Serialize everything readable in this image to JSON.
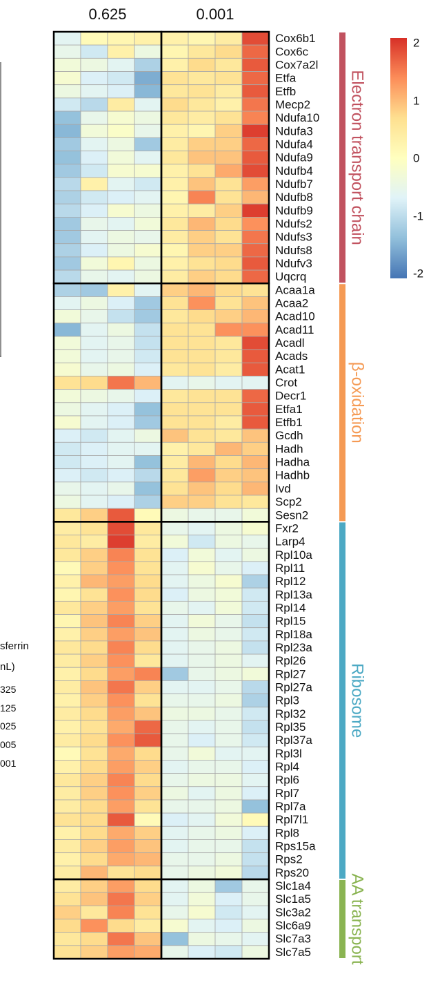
{
  "chart_data": {
    "type": "heatmap",
    "column_group_labels": [
      "0.625",
      "0.001"
    ],
    "color_scale": {
      "min": -2,
      "max": 2,
      "ticks": [
        "2",
        "1",
        "0",
        "-1",
        "-2"
      ],
      "colors": [
        "#4575b4",
        "#91bfdb",
        "#e0f3f8",
        "#ffffbf",
        "#fee090",
        "#fc8d59",
        "#d73027"
      ]
    },
    "groups": [
      {
        "name": "Electron transport chain",
        "color": "#c1525f"
      },
      {
        "name": "β-oxidation",
        "color": "#f59a54"
      },
      {
        "name": "Ribosome",
        "color": "#4ca9c4"
      },
      {
        "name": "AA transport",
        "color": "#8ab452"
      }
    ],
    "rows": [
      {
        "gene": "Cox6b1",
        "group": 0,
        "values": [
          -0.6,
          0.1,
          0.2,
          0.3,
          0.3,
          0.2,
          0.4,
          1.8
        ]
      },
      {
        "gene": "Cox6c",
        "group": 0,
        "values": [
          -0.5,
          -0.8,
          0.3,
          -0.4,
          0.2,
          0.5,
          0.7,
          1.6
        ]
      },
      {
        "gene": "Cox7a2l",
        "group": 0,
        "values": [
          -0.3,
          -0.4,
          -0.6,
          -1.1,
          0.3,
          0.7,
          0.5,
          1.7
        ]
      },
      {
        "gene": "Etfa",
        "group": 0,
        "values": [
          -0.2,
          -0.7,
          -0.8,
          -1.5,
          0.6,
          0.5,
          0.6,
          1.6
        ]
      },
      {
        "gene": "Etfb",
        "group": 0,
        "values": [
          -0.4,
          -0.6,
          -0.7,
          -1.4,
          0.5,
          0.6,
          0.4,
          1.7
        ]
      },
      {
        "gene": "Mecp2",
        "group": 0,
        "values": [
          -0.8,
          -1.0,
          0.4,
          -0.6,
          0.7,
          0.5,
          0.3,
          1.5
        ]
      },
      {
        "gene": "Ndufa10",
        "group": 0,
        "values": [
          -1.3,
          -0.5,
          -0.2,
          -0.4,
          0.5,
          0.4,
          0.6,
          1.4
        ]
      },
      {
        "gene": "Ndufa3",
        "group": 0,
        "values": [
          -1.4,
          -0.3,
          -0.1,
          -0.5,
          0.3,
          0.2,
          0.8,
          1.9
        ]
      },
      {
        "gene": "Ndufa4",
        "group": 0,
        "values": [
          -1.2,
          -0.6,
          -0.4,
          -1.2,
          0.4,
          0.8,
          0.8,
          1.6
        ]
      },
      {
        "gene": "Ndufa9",
        "group": 0,
        "values": [
          -1.3,
          -0.7,
          -0.3,
          -0.6,
          0.5,
          0.9,
          0.9,
          1.7
        ]
      },
      {
        "gene": "Ndufb4",
        "group": 0,
        "values": [
          -1.2,
          -0.8,
          -0.2,
          -0.2,
          0.3,
          0.6,
          1.1,
          1.8
        ]
      },
      {
        "gene": "Ndufb7",
        "group": 0,
        "values": [
          -1.0,
          0.3,
          -0.6,
          -0.8,
          0.3,
          0.9,
          0.6,
          1.2
        ]
      },
      {
        "gene": "Ndufb8",
        "group": 0,
        "values": [
          -1.1,
          -0.8,
          -0.7,
          -0.6,
          0.2,
          1.4,
          0.6,
          1.0
        ]
      },
      {
        "gene": "Ndufb9",
        "group": 0,
        "values": [
          -1.0,
          -0.7,
          -0.2,
          -0.4,
          0.3,
          0.4,
          0.8,
          1.9
        ]
      },
      {
        "gene": "Ndufs2",
        "group": 0,
        "values": [
          -1.2,
          -0.5,
          -0.6,
          -0.3,
          0.5,
          1.0,
          0.7,
          1.3
        ]
      },
      {
        "gene": "Ndufs3",
        "group": 0,
        "values": [
          -1.2,
          -0.6,
          -0.4,
          -0.5,
          0.4,
          0.8,
          0.6,
          1.5
        ]
      },
      {
        "gene": "Ndufs8",
        "group": 0,
        "values": [
          -1.1,
          -0.7,
          -0.4,
          -0.2,
          0.2,
          0.8,
          0.8,
          1.6
        ]
      },
      {
        "gene": "Ndufv3",
        "group": 0,
        "values": [
          -1.2,
          -0.3,
          0.2,
          -0.4,
          0.3,
          0.6,
          0.7,
          1.7
        ]
      },
      {
        "gene": "Uqcrq",
        "group": 0,
        "values": [
          -1.0,
          -0.5,
          -0.6,
          -0.4,
          0.4,
          0.8,
          0.7,
          1.6
        ]
      },
      {
        "gene": "Acaa1a",
        "group": 1,
        "values": [
          -1.1,
          -1.2,
          0.3,
          -0.6,
          0.8,
          1.0,
          0.7,
          0.6
        ]
      },
      {
        "gene": "Acaa2",
        "group": 1,
        "values": [
          -0.6,
          -0.4,
          -0.7,
          -1.2,
          0.6,
          1.3,
          0.6,
          0.9
        ]
      },
      {
        "gene": "Acad10",
        "group": 1,
        "values": [
          -0.3,
          -0.5,
          -0.9,
          -1.2,
          0.5,
          0.7,
          0.8,
          1.0
        ]
      },
      {
        "gene": "Acad11",
        "group": 1,
        "values": [
          -1.4,
          -0.6,
          -0.4,
          -0.9,
          0.6,
          0.6,
          1.3,
          1.3
        ]
      },
      {
        "gene": "Acadl",
        "group": 1,
        "values": [
          -0.3,
          -0.6,
          -0.5,
          -0.9,
          0.6,
          0.6,
          0.5,
          1.8
        ]
      },
      {
        "gene": "Acads",
        "group": 1,
        "values": [
          -0.3,
          -0.6,
          -0.5,
          -0.8,
          0.6,
          0.6,
          0.5,
          1.7
        ]
      },
      {
        "gene": "Acat1",
        "group": 1,
        "values": [
          -0.2,
          -0.5,
          -0.4,
          -0.7,
          0.5,
          0.6,
          0.4,
          1.7
        ]
      },
      {
        "gene": "Crot",
        "group": 1,
        "values": [
          0.6,
          0.7,
          1.5,
          1.0,
          -0.6,
          -0.5,
          -0.6,
          -0.6
        ]
      },
      {
        "gene": "Decr1",
        "group": 1,
        "values": [
          -0.3,
          -0.4,
          -0.5,
          -0.7,
          0.5,
          0.6,
          0.6,
          1.6
        ]
      },
      {
        "gene": "Etfa1",
        "group": 1,
        "values": [
          -0.4,
          -0.6,
          -0.7,
          -1.3,
          0.6,
          0.6,
          0.6,
          1.7
        ]
      },
      {
        "gene": "Etfb1",
        "group": 1,
        "values": [
          -0.2,
          -0.6,
          -0.7,
          -1.2,
          0.6,
          0.6,
          0.4,
          1.7
        ]
      },
      {
        "gene": "Gcdh",
        "group": 1,
        "values": [
          -0.7,
          -0.8,
          -0.6,
          -0.4,
          0.9,
          0.6,
          0.5,
          0.9
        ]
      },
      {
        "gene": "Hadh",
        "group": 1,
        "values": [
          -0.8,
          -0.7,
          -0.6,
          -0.6,
          0.3,
          0.5,
          1.0,
          0.8
        ]
      },
      {
        "gene": "Hadha",
        "group": 1,
        "values": [
          -0.8,
          -0.7,
          -0.6,
          -1.3,
          0.4,
          1.0,
          0.7,
          1.0
        ]
      },
      {
        "gene": "Hadhb",
        "group": 1,
        "values": [
          -0.7,
          -0.8,
          -0.7,
          -1.0,
          0.5,
          1.2,
          0.8,
          0.9
        ]
      },
      {
        "gene": "Ivd",
        "group": 1,
        "values": [
          -0.5,
          -0.6,
          -0.5,
          -1.3,
          0.6,
          0.9,
          0.7,
          1.0
        ]
      },
      {
        "gene": "Scp2",
        "group": 1,
        "values": [
          -0.4,
          -0.6,
          -0.7,
          -1.1,
          0.8,
          0.8,
          0.6,
          0.5
        ]
      },
      {
        "gene": "Sesn2",
        "group": 1,
        "values": [
          0.5,
          0.8,
          1.7,
          0.1,
          -0.4,
          -0.5,
          -0.5,
          -0.3
        ]
      },
      {
        "gene": "Fxr2",
        "group": 2,
        "values": [
          0.4,
          0.6,
          1.8,
          0.5,
          -0.5,
          -0.6,
          -0.4,
          -0.2
        ]
      },
      {
        "gene": "Larp4",
        "group": 2,
        "values": [
          0.5,
          0.4,
          1.9,
          0.4,
          -0.3,
          -0.8,
          -0.4,
          -0.5
        ]
      },
      {
        "gene": "Rpl10a",
        "group": 2,
        "values": [
          0.5,
          0.8,
          1.4,
          0.6,
          -0.7,
          -0.3,
          -0.6,
          -0.4
        ]
      },
      {
        "gene": "Rpl11",
        "group": 2,
        "values": [
          0.1,
          0.8,
          1.3,
          0.6,
          -0.6,
          -0.2,
          -0.5,
          -0.7
        ]
      },
      {
        "gene": "Rpl12",
        "group": 2,
        "values": [
          0.3,
          1.0,
          1.2,
          0.7,
          -0.6,
          -0.4,
          -0.2,
          -1.1
        ]
      },
      {
        "gene": "Rpl13a",
        "group": 2,
        "values": [
          0.2,
          0.6,
          1.3,
          0.7,
          -0.7,
          -0.4,
          -0.3,
          -0.8
        ]
      },
      {
        "gene": "Rpl14",
        "group": 2,
        "values": [
          0.5,
          0.8,
          1.2,
          0.6,
          -0.5,
          -0.6,
          -0.3,
          -0.8
        ]
      },
      {
        "gene": "Rpl15",
        "group": 2,
        "values": [
          0.2,
          0.9,
          1.4,
          0.8,
          -0.6,
          -0.3,
          -0.5,
          -0.9
        ]
      },
      {
        "gene": "Rpl18a",
        "group": 2,
        "values": [
          0.3,
          0.8,
          1.2,
          0.9,
          -0.6,
          -0.4,
          -0.5,
          -0.8
        ]
      },
      {
        "gene": "Rpl23a",
        "group": 2,
        "values": [
          0.5,
          0.7,
          1.4,
          0.7,
          -0.6,
          -0.5,
          -0.4,
          -0.9
        ]
      },
      {
        "gene": "Rpl26",
        "group": 2,
        "values": [
          0.4,
          0.8,
          1.3,
          0.5,
          -0.6,
          -0.5,
          -0.4,
          -0.6
        ]
      },
      {
        "gene": "Rpl27",
        "group": 2,
        "values": [
          0.3,
          0.7,
          1.2,
          1.4,
          -1.2,
          -0.5,
          -0.4,
          -0.3
        ]
      },
      {
        "gene": "Rpl27a",
        "group": 2,
        "values": [
          0.4,
          0.9,
          1.5,
          0.8,
          -0.6,
          -0.6,
          -0.5,
          -1.0
        ]
      },
      {
        "gene": "Rpl3",
        "group": 2,
        "values": [
          0.3,
          0.8,
          1.3,
          0.6,
          -0.5,
          -0.5,
          -0.4,
          -1.1
        ]
      },
      {
        "gene": "Rpl32",
        "group": 2,
        "values": [
          0.4,
          0.7,
          1.2,
          0.9,
          -0.4,
          -0.4,
          -0.5,
          -0.8
        ]
      },
      {
        "gene": "Rpl35",
        "group": 2,
        "values": [
          0.3,
          0.6,
          1.1,
          1.6,
          -0.5,
          -0.6,
          -0.5,
          -0.9
        ]
      },
      {
        "gene": "Rpl37a",
        "group": 2,
        "values": [
          0.4,
          0.7,
          1.3,
          1.7,
          -0.5,
          -0.7,
          -0.5,
          -0.8
        ]
      },
      {
        "gene": "Rpl3l",
        "group": 2,
        "values": [
          0.1,
          0.6,
          1.1,
          0.7,
          -0.5,
          -0.3,
          -0.6,
          -0.6
        ]
      },
      {
        "gene": "Rpl4",
        "group": 2,
        "values": [
          0.3,
          0.7,
          1.2,
          0.8,
          -0.6,
          -0.5,
          -0.5,
          -0.7
        ]
      },
      {
        "gene": "Rpl6",
        "group": 2,
        "values": [
          0.5,
          0.8,
          1.4,
          0.7,
          -0.5,
          -0.4,
          -0.4,
          -0.6
        ]
      },
      {
        "gene": "Rpl7",
        "group": 2,
        "values": [
          0.4,
          0.8,
          1.3,
          0.8,
          -0.4,
          -0.6,
          -0.4,
          -0.7
        ]
      },
      {
        "gene": "Rpl7a",
        "group": 2,
        "values": [
          0.4,
          0.7,
          1.2,
          0.6,
          -0.5,
          -0.5,
          -0.4,
          -1.3
        ]
      },
      {
        "gene": "Rpl7l1",
        "group": 2,
        "values": [
          0.6,
          0.7,
          1.7,
          0.1,
          -0.7,
          -0.6,
          -0.3,
          0.1
        ]
      },
      {
        "gene": "Rpl8",
        "group": 2,
        "values": [
          0.3,
          0.7,
          1.1,
          0.8,
          -0.6,
          -0.5,
          -0.4,
          -0.7
        ]
      },
      {
        "gene": "Rps15a",
        "group": 2,
        "values": [
          0.4,
          0.8,
          1.2,
          0.9,
          -0.6,
          -0.5,
          -0.5,
          -0.9
        ]
      },
      {
        "gene": "Rps2",
        "group": 2,
        "values": [
          0.3,
          0.7,
          1.1,
          1.0,
          -0.5,
          -0.5,
          -0.4,
          -0.9
        ]
      },
      {
        "gene": "Rps20",
        "group": 2,
        "values": [
          0.4,
          1.0,
          0.6,
          0.7,
          -0.5,
          -0.4,
          -0.3,
          -1.0
        ]
      },
      {
        "gene": "Slc1a4",
        "group": 3,
        "values": [
          0.4,
          0.8,
          1.2,
          0.7,
          -0.6,
          -0.4,
          -1.2,
          -0.5
        ]
      },
      {
        "gene": "Slc1a5",
        "group": 3,
        "values": [
          0.6,
          0.9,
          1.5,
          0.8,
          -0.6,
          -0.3,
          -0.7,
          -0.5
        ]
      },
      {
        "gene": "Slc3a2",
        "group": 3,
        "values": [
          0.8,
          0.5,
          1.4,
          0.6,
          -0.5,
          -0.2,
          -0.8,
          -0.6
        ]
      },
      {
        "gene": "Slc6a9",
        "group": 3,
        "values": [
          0.7,
          1.3,
          0.7,
          0.4,
          -0.2,
          -0.6,
          -0.7,
          -0.4
        ]
      },
      {
        "gene": "Slc7a3",
        "group": 3,
        "values": [
          0.5,
          0.7,
          1.5,
          0.9,
          -1.3,
          -0.4,
          -0.5,
          -0.6
        ]
      },
      {
        "gene": "Slc7a5",
        "group": 3,
        "values": [
          0.6,
          0.8,
          1.2,
          1.1,
          -0.5,
          -0.7,
          -0.8,
          -0.4
        ]
      }
    ]
  },
  "partial_legend": {
    "title_line1": "sferrin",
    "title_line2": "nL)",
    "items": [
      "325",
      "125",
      "025",
      "005",
      "001"
    ]
  }
}
